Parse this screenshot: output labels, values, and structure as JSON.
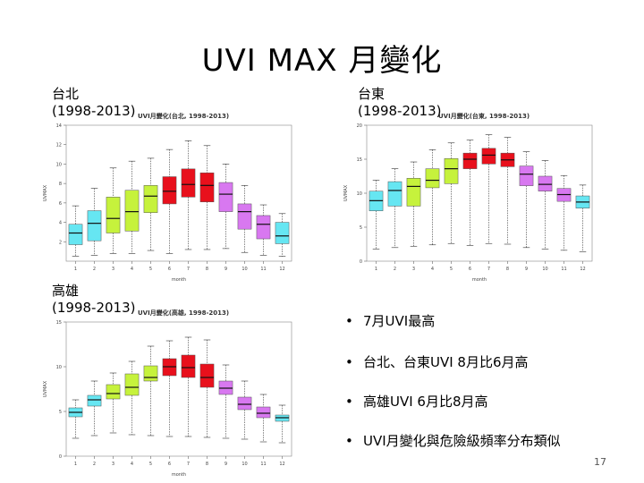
{
  "page_title": "UVI MAX 月變化",
  "page_number": "17",
  "stations": [
    {
      "name": "台北",
      "years": "(1998-2013)"
    },
    {
      "name": "台東",
      "years": "(1998-2013)"
    },
    {
      "name": "高雄",
      "years": "(1998-2013)"
    }
  ],
  "bullets": [
    "7月UVI最高",
    "台北、台東UVI 8月比6月高",
    "高雄UVI 6月比8月高",
    "UVI月變化與危險級頻率分布類似"
  ],
  "colors": {
    "cyan": "#66e6f2",
    "green": "#c6f23c",
    "red": "#e8101c",
    "magenta": "#d878f0"
  },
  "chart_data": [
    {
      "type": "box",
      "title": "UVI月變化(台北, 1998-2013)",
      "xlabel": "month",
      "ylabel": "UVMAX",
      "ylim": [
        0,
        14
      ],
      "yticks": [
        2,
        4,
        6,
        8,
        10,
        12,
        14
      ],
      "categories": [
        "1",
        "2",
        "3",
        "4",
        "5",
        "6",
        "7",
        "8",
        "9",
        "10",
        "11",
        "12"
      ],
      "color_groups": [
        "cyan",
        "cyan",
        "green",
        "green",
        "green",
        "red",
        "red",
        "red",
        "magenta",
        "magenta",
        "magenta",
        "cyan"
      ],
      "boxes": [
        {
          "min": 0.5,
          "q1": 1.7,
          "median": 2.9,
          "q3": 3.8,
          "max": 5.7
        },
        {
          "min": 0.6,
          "q1": 2.1,
          "median": 3.9,
          "q3": 5.2,
          "max": 7.5
        },
        {
          "min": 0.8,
          "q1": 2.9,
          "median": 4.4,
          "q3": 6.6,
          "max": 9.6
        },
        {
          "min": 0.8,
          "q1": 3.1,
          "median": 5.1,
          "q3": 7.3,
          "max": 10.3
        },
        {
          "min": 1.1,
          "q1": 5.0,
          "median": 6.7,
          "q3": 7.8,
          "max": 10.6
        },
        {
          "min": 0.8,
          "q1": 5.9,
          "median": 7.2,
          "q3": 8.7,
          "max": 11.5
        },
        {
          "min": 1.2,
          "q1": 6.6,
          "median": 7.9,
          "q3": 9.5,
          "max": 12.4
        },
        {
          "min": 1.2,
          "q1": 6.1,
          "median": 7.8,
          "q3": 9.1,
          "max": 11.9
        },
        {
          "min": 1.3,
          "q1": 5.1,
          "median": 6.9,
          "q3": 8.1,
          "max": 10.0
        },
        {
          "min": 0.9,
          "q1": 3.3,
          "median": 5.1,
          "q3": 5.9,
          "max": 7.8
        },
        {
          "min": 0.6,
          "q1": 2.3,
          "median": 3.8,
          "q3": 4.7,
          "max": 5.8
        },
        {
          "min": 0.5,
          "q1": 1.8,
          "median": 2.6,
          "q3": 4.0,
          "max": 4.9
        }
      ]
    },
    {
      "type": "box",
      "title": "UVI月變化(台東, 1998-2013)",
      "xlabel": "month",
      "ylabel": "UVMAX",
      "ylim": [
        0,
        20
      ],
      "yticks": [
        0,
        5,
        10,
        15,
        20
      ],
      "categories": [
        "1",
        "2",
        "3",
        "4",
        "5",
        "6",
        "7",
        "8",
        "9",
        "10",
        "11",
        "12"
      ],
      "color_groups": [
        "cyan",
        "cyan",
        "green",
        "green",
        "green",
        "red",
        "red",
        "red",
        "magenta",
        "magenta",
        "magenta",
        "cyan"
      ],
      "boxes": [
        {
          "min": 1.8,
          "q1": 7.4,
          "median": 8.9,
          "q3": 10.3,
          "max": 11.9
        },
        {
          "min": 2.0,
          "q1": 8.1,
          "median": 10.4,
          "q3": 11.7,
          "max": 13.6
        },
        {
          "min": 2.2,
          "q1": 8.1,
          "median": 11.0,
          "q3": 12.2,
          "max": 14.6
        },
        {
          "min": 2.4,
          "q1": 10.8,
          "median": 11.9,
          "q3": 13.6,
          "max": 16.4
        },
        {
          "min": 2.6,
          "q1": 11.4,
          "median": 13.6,
          "q3": 15.1,
          "max": 17.4
        },
        {
          "min": 2.3,
          "q1": 13.6,
          "median": 15.0,
          "q3": 15.9,
          "max": 17.8
        },
        {
          "min": 2.6,
          "q1": 14.3,
          "median": 15.6,
          "q3": 16.6,
          "max": 18.6
        },
        {
          "min": 2.5,
          "q1": 13.9,
          "median": 14.9,
          "q3": 15.9,
          "max": 18.2
        },
        {
          "min": 2.0,
          "q1": 11.1,
          "median": 12.8,
          "q3": 14.0,
          "max": 16.1
        },
        {
          "min": 1.8,
          "q1": 10.3,
          "median": 11.3,
          "q3": 12.5,
          "max": 14.8
        },
        {
          "min": 1.6,
          "q1": 8.8,
          "median": 9.8,
          "q3": 10.7,
          "max": 12.6
        },
        {
          "min": 1.4,
          "q1": 7.8,
          "median": 8.7,
          "q3": 9.6,
          "max": 11.2
        }
      ]
    },
    {
      "type": "box",
      "title": "UVI月變化(高雄, 1998-2013)",
      "xlabel": "month",
      "ylabel": "UVMAX",
      "ylim": [
        0,
        15
      ],
      "yticks": [
        0,
        5,
        10,
        15
      ],
      "categories": [
        "1",
        "2",
        "3",
        "4",
        "5",
        "6",
        "7",
        "8",
        "9",
        "10",
        "11",
        "12"
      ],
      "color_groups": [
        "cyan",
        "cyan",
        "green",
        "green",
        "green",
        "red",
        "red",
        "red",
        "magenta",
        "magenta",
        "magenta",
        "cyan"
      ],
      "boxes": [
        {
          "min": 2.0,
          "q1": 4.4,
          "median": 4.9,
          "q3": 5.4,
          "max": 6.3
        },
        {
          "min": 2.3,
          "q1": 5.6,
          "median": 6.3,
          "q3": 6.8,
          "max": 8.4
        },
        {
          "min": 2.6,
          "q1": 6.4,
          "median": 7.0,
          "q3": 8.0,
          "max": 9.3
        },
        {
          "min": 2.4,
          "q1": 6.8,
          "median": 7.7,
          "q3": 9.2,
          "max": 10.6
        },
        {
          "min": 2.3,
          "q1": 8.4,
          "median": 8.8,
          "q3": 10.1,
          "max": 12.3
        },
        {
          "min": 2.2,
          "q1": 9.0,
          "median": 10.0,
          "q3": 10.9,
          "max": 12.9
        },
        {
          "min": 2.2,
          "q1": 8.8,
          "median": 9.9,
          "q3": 11.3,
          "max": 13.3
        },
        {
          "min": 2.1,
          "q1": 7.7,
          "median": 8.8,
          "q3": 10.3,
          "max": 13.0
        },
        {
          "min": 2.0,
          "q1": 6.9,
          "median": 7.6,
          "q3": 8.4,
          "max": 10.2
        },
        {
          "min": 1.9,
          "q1": 5.2,
          "median": 5.8,
          "q3": 6.6,
          "max": 8.4
        },
        {
          "min": 1.6,
          "q1": 4.3,
          "median": 4.8,
          "q3": 5.5,
          "max": 6.9
        },
        {
          "min": 1.5,
          "q1": 3.9,
          "median": 4.3,
          "q3": 4.6,
          "max": 5.7
        }
      ]
    }
  ]
}
